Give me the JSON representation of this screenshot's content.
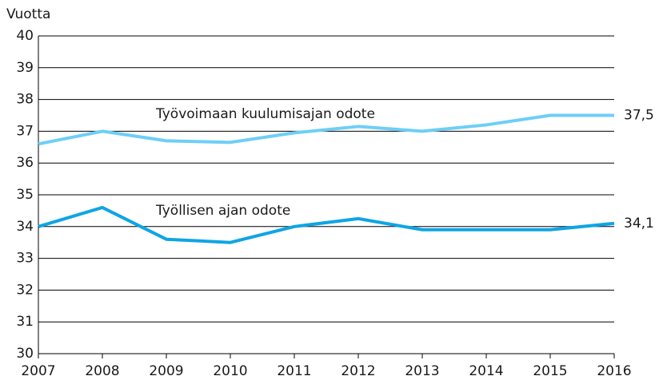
{
  "chart_data": {
    "type": "line",
    "y_label": "Vuotta",
    "categories": [
      "2007",
      "2008",
      "2009",
      "2010",
      "2011",
      "2012",
      "2013",
      "2014",
      "2015",
      "2016"
    ],
    "series": [
      {
        "name": "Työvoimaan kuulumisajan odote",
        "color": "#6dcff6",
        "values": [
          36.6,
          37.0,
          36.7,
          36.65,
          36.95,
          37.15,
          37.0,
          37.2,
          37.5,
          37.5
        ],
        "value_labels": [
          null,
          null,
          null,
          null,
          null,
          null,
          null,
          null,
          null,
          "37,5"
        ]
      },
      {
        "name": "Työllisen ajan odote",
        "color": "#0ea5e4",
        "values": [
          34.0,
          34.6,
          33.6,
          33.5,
          34.0,
          34.25,
          33.9,
          33.9,
          33.9,
          34.1
        ],
        "value_labels": [
          null,
          null,
          null,
          null,
          null,
          null,
          null,
          null,
          null,
          "34,1"
        ]
      }
    ],
    "ylim": [
      30,
      40
    ],
    "yticks": [
      30,
      31,
      32,
      33,
      34,
      35,
      36,
      37,
      38,
      39,
      40
    ],
    "grid": true
  }
}
